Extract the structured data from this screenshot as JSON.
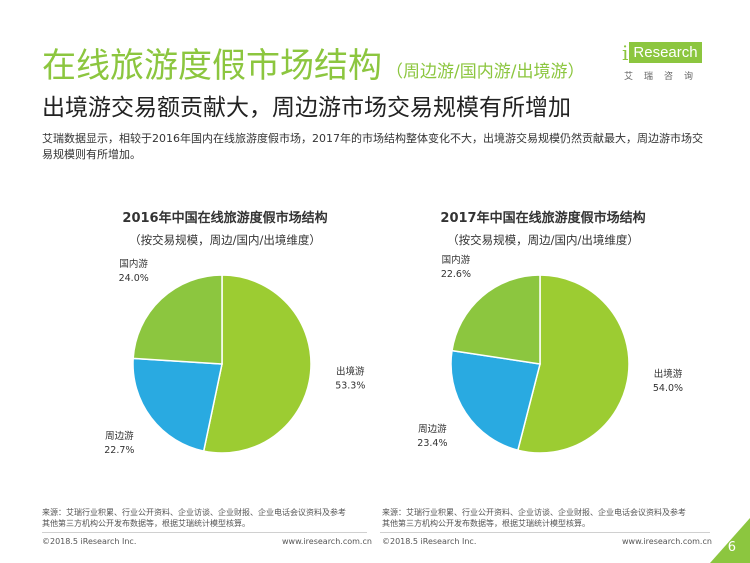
{
  "header": {
    "title": "在线旅游度假市场结构",
    "title_paren": "（周边游/国内游/出境游）",
    "subtitle": "出境游交易额贡献大，周边游市场交易规模有所增加",
    "description": "艾瑞数据显示，相较于2016年国内在线旅游度假市场，2017年的市场结构整体变化不大，出境游交易规模仍然贡献最大，周边游市场交易规模则有所增加。"
  },
  "logo": {
    "i": "i",
    "word": "Research",
    "cn": "艾瑞咨询"
  },
  "colors": {
    "brand": "#8cc63f",
    "outbound": "#9ccc32",
    "domestic": "#8cc63f",
    "nearby": "#29aae1"
  },
  "chart_data": [
    {
      "type": "pie",
      "title": "2016年中国在线旅游度假市场结构",
      "subtitle": "（按交易规模，周边/国内/出境维度）",
      "slices": [
        {
          "label": "出境游",
          "value": 53.3,
          "display": "53.3%"
        },
        {
          "label": "周边游",
          "value": 22.7,
          "display": "22.7%"
        },
        {
          "label": "国内游",
          "value": 24.0,
          "display": "24.0%"
        }
      ]
    },
    {
      "type": "pie",
      "title": "2017年中国在线旅游度假市场结构",
      "subtitle": "（按交易规模，周边/国内/出境维度）",
      "slices": [
        {
          "label": "出境游",
          "value": 54.0,
          "display": "54.0%"
        },
        {
          "label": "周边游",
          "value": 23.4,
          "display": "23.4%"
        },
        {
          "label": "国内游",
          "value": 22.6,
          "display": "22.6%"
        }
      ]
    }
  ],
  "footer": {
    "source": "来源：艾瑞行业积累、行业公开资料、企业访谈、企业财报、企业电话会议资料及参考其他第三方机构公开发布数据等，根据艾瑞统计模型核算。",
    "copyright": "©2018.5 iResearch Inc.",
    "url": "www.iresearch.com.cn",
    "page": "6"
  }
}
